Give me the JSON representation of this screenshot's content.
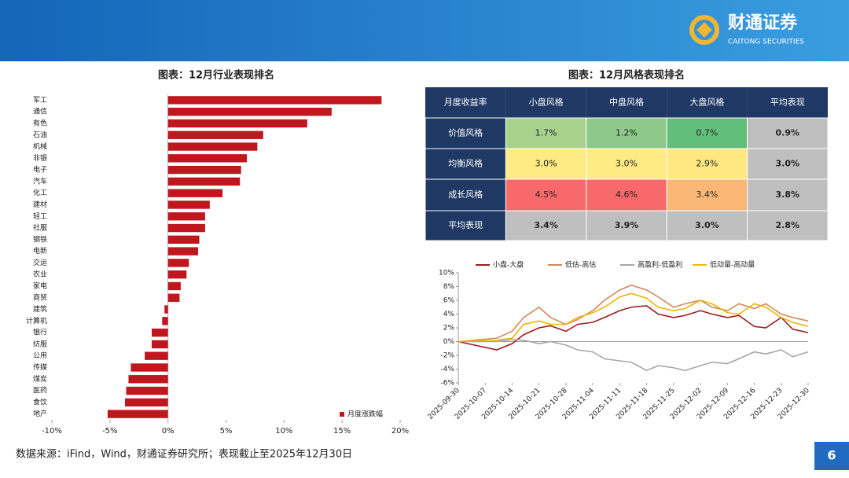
{
  "header": {
    "brand": "财通证券",
    "brand_en": "CAITONG SECURITIES"
  },
  "chart_data": [
    {
      "type": "bar",
      "orientation": "horizontal",
      "title": "图表：12月行业表现排名",
      "categories": [
        "军工",
        "通信",
        "有色",
        "石油",
        "机械",
        "非银",
        "电子",
        "汽车",
        "化工",
        "建材",
        "轻工",
        "社服",
        "钢铁",
        "电新",
        "交运",
        "农业",
        "家电",
        "商贸",
        "建筑",
        "计算机",
        "银行",
        "纺服",
        "公用",
        "传媒",
        "煤炭",
        "医药",
        "食饮",
        "地产"
      ],
      "series": [
        {
          "name": "月度涨跌幅",
          "color": "#c0161d",
          "values": [
            18.4,
            14.1,
            12.0,
            8.2,
            7.7,
            6.8,
            6.3,
            6.2,
            4.7,
            3.6,
            3.2,
            3.2,
            2.7,
            2.6,
            1.8,
            1.6,
            1.1,
            1.0,
            -0.3,
            -0.5,
            -1.4,
            -1.4,
            -2.0,
            -3.2,
            -3.4,
            -3.6,
            -3.7,
            -5.2
          ]
        }
      ],
      "xlim": [
        -10,
        20
      ],
      "xticks": [
        {
          "value": -10,
          "label": "-10%"
        },
        {
          "value": -5,
          "label": "-5%"
        },
        {
          "value": 0,
          "label": "0%"
        },
        {
          "value": 5,
          "label": "5%"
        },
        {
          "value": 10,
          "label": "10%"
        },
        {
          "value": 15,
          "label": "15%"
        },
        {
          "value": 20,
          "label": "20%"
        }
      ],
      "legend": "bottom-right"
    },
    {
      "type": "line",
      "x": [
        "2025-09-30",
        "2025-10-10",
        "2025-10-14",
        "2025-10-17",
        "2025-10-21",
        "2025-10-24",
        "2025-10-28",
        "2025-10-31",
        "2025-11-04",
        "2025-11-07",
        "2025-11-11",
        "2025-11-14",
        "2025-11-18",
        "2025-11-21",
        "2025-11-25",
        "2025-11-28",
        "2025-12-02",
        "2025-12-05",
        "2025-12-09",
        "2025-12-12",
        "2025-12-16",
        "2025-12-19",
        "2025-12-23",
        "2025-12-26",
        "2025-12-30"
      ],
      "series": [
        {
          "name": "小盘-大盘",
          "color": "#a01a1e",
          "values": [
            0,
            -1.2,
            -0.3,
            1.0,
            2.0,
            2.3,
            1.5,
            2.5,
            2.8,
            3.5,
            4.5,
            5.0,
            5.2,
            4.0,
            3.5,
            3.8,
            4.5,
            4.0,
            3.5,
            3.8,
            2.2,
            2.0,
            3.5,
            1.8,
            1.3
          ]
        },
        {
          "name": "低估-高估",
          "color": "#d4875a",
          "values": [
            0,
            0.5,
            1.5,
            3.5,
            5.0,
            3.5,
            2.5,
            3.2,
            4.5,
            6.0,
            7.5,
            8.2,
            7.5,
            6.5,
            5.0,
            5.5,
            6.0,
            5.0,
            4.5,
            5.5,
            4.8,
            5.5,
            4.0,
            3.5,
            3.0
          ]
        },
        {
          "name": "高盈利-低盈利",
          "color": "#a6a6a6",
          "values": [
            0,
            0,
            0.3,
            0.2,
            -0.3,
            0,
            -0.5,
            -1.2,
            -1.5,
            -2.5,
            -2.8,
            -3.0,
            -4.2,
            -3.5,
            -3.8,
            -4.2,
            -3.5,
            -3.0,
            -3.2,
            -2.5,
            -1.5,
            -1.8,
            -1.2,
            -2.2,
            -1.5
          ]
        },
        {
          "name": "低动量-高动量",
          "color": "#f0b400",
          "values": [
            0,
            0.2,
            0.5,
            2.5,
            3.0,
            2.5,
            2.5,
            3.5,
            4.2,
            5.0,
            6.5,
            7.0,
            6.3,
            5.0,
            4.5,
            4.8,
            6.0,
            5.5,
            4.2,
            4.0,
            5.5,
            5.0,
            3.5,
            2.8,
            2.2
          ]
        }
      ],
      "xlim": [
        "2025-09-30",
        "2025-12-30"
      ],
      "xticks": [
        "2025-09-30",
        "2025-10-07",
        "2025-10-14",
        "2025-10-21",
        "2025-10-28",
        "2025-11-04",
        "2025-11-11",
        "2025-11-18",
        "2025-11-25",
        "2025-12-02",
        "2025-12-09",
        "2025-12-16",
        "2025-12-23",
        "2025-12-30"
      ],
      "ylim": [
        -6,
        10
      ],
      "yticks": [
        {
          "value": -6,
          "label": "-6%"
        },
        {
          "value": -4,
          "label": "-4%"
        },
        {
          "value": -2,
          "label": "-2%"
        },
        {
          "value": 0,
          "label": "0%"
        },
        {
          "value": 2,
          "label": "2%"
        },
        {
          "value": 4,
          "label": "4%"
        },
        {
          "value": 6,
          "label": "6%"
        },
        {
          "value": 8,
          "label": "8%"
        },
        {
          "value": 10,
          "label": "10%"
        }
      ],
      "legend": "top"
    }
  ],
  "table": {
    "title": "图表：12月风格表现排名",
    "header": [
      "月度收益率",
      "小盘风格",
      "中盘风格",
      "大盘风格",
      "平均表现"
    ],
    "rows": [
      [
        "价值风格",
        "1.7%",
        "1.2%",
        "0.7%",
        "0.9%"
      ],
      [
        "均衡风格",
        "3.0%",
        "3.0%",
        "2.9%",
        "3.0%"
      ],
      [
        "成长风格",
        "4.5%",
        "4.6%",
        "3.4%",
        "3.8%"
      ],
      [
        "平均表现",
        "3.4%",
        "3.9%",
        "3.0%",
        "2.8%"
      ]
    ],
    "colors": [
      [
        "#1f3864",
        "#a9d18e",
        "#8cc98a",
        "#63be7b",
        "#bfbfbf"
      ],
      [
        "#1f3864",
        "#ffeb84",
        "#ffeb84",
        "#fde882",
        "#bfbfbf"
      ],
      [
        "#1f3864",
        "#f8696b",
        "#f8696b",
        "#fbb776",
        "#bfbfbf"
      ],
      [
        "#1f3864",
        "#bfbfbf",
        "#bfbfbf",
        "#bfbfbf",
        "#bfbfbf"
      ]
    ]
  },
  "footer": {
    "source": "数据来源：iFind，Wind，财通证券研究所；表现截止至2025年12月30日",
    "page": "6"
  }
}
